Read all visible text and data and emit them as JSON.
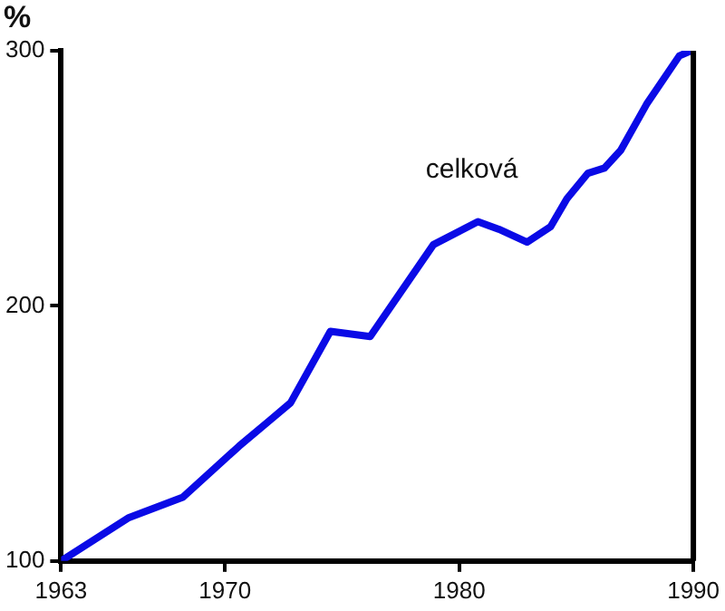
{
  "chart_data": {
    "type": "line",
    "ylabel": "%",
    "x": [
      1963,
      1965.9,
      1968.2,
      1970.6,
      1971.9,
      1972.8,
      1974.5,
      1976.2,
      1978.9,
      1980.8,
      1981.7,
      1982.9,
      1983.9,
      1984.6,
      1985.5,
      1986.2,
      1986.9,
      1988,
      1989.4,
      1989.9
    ],
    "series": [
      {
        "name": "celková",
        "color": "#0a0ae6",
        "values": [
          100,
          117,
          125,
          145,
          155,
          162,
          190,
          188,
          224,
          233,
          230,
          225,
          231,
          242,
          252,
          254,
          261,
          279,
          298,
          300
        ]
      }
    ],
    "xlim": [
      1963,
      1990
    ],
    "xticks": [
      1963,
      1970,
      1980,
      1990
    ],
    "ylim": [
      100,
      300
    ],
    "yticks": [
      100,
      200,
      300
    ],
    "grid": false,
    "legend": false,
    "marker": "none",
    "line_style": "solid"
  }
}
